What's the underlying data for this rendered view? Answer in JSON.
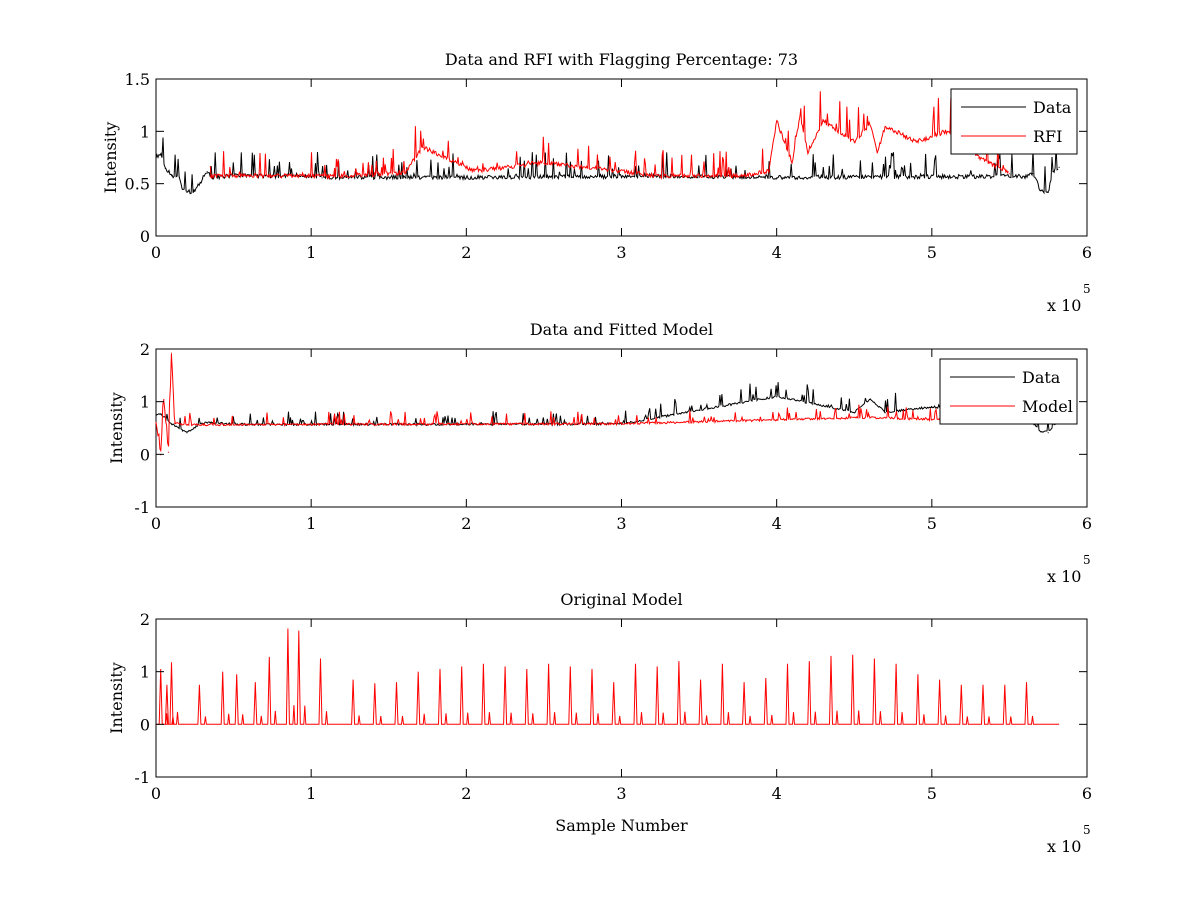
{
  "chart_data": [
    {
      "type": "line",
      "title": "Data and RFI with Flagging Percentage: 73",
      "xlabel": "",
      "ylabel": "Intensity",
      "xlim": [
        0,
        600000
      ],
      "ylim": [
        0,
        1.5
      ],
      "xticks": [
        "0",
        "1",
        "2",
        "3",
        "4",
        "5",
        "6"
      ],
      "yticks": [
        "0",
        "0.5",
        "1",
        "1.5"
      ],
      "x_exponent": {
        "base": "x 10",
        "power": "5"
      },
      "grid": false,
      "legend": {
        "placement": "top-right",
        "entries": [
          {
            "name": "Data",
            "color": "#000000"
          },
          {
            "name": "RFI",
            "color": "#ff0000"
          }
        ]
      },
      "series": [
        {
          "name": "Data",
          "color": "#000000",
          "x": [
            0,
            3000,
            6000,
            10000,
            15000,
            17000,
            20000,
            25000,
            30000,
            33000,
            36000,
            45000,
            60000,
            75000,
            90000,
            100000,
            107000,
            200000,
            300000,
            320000,
            330000,
            380000,
            390000,
            400000,
            560000,
            565000,
            570000,
            575000,
            578000,
            582000
          ],
          "y": [
            0.75,
            0.78,
            0.65,
            0.58,
            0.56,
            0.45,
            0.42,
            0.43,
            0.55,
            0.62,
            0.56,
            0.57,
            0.58,
            0.57,
            0.58,
            0.57,
            0.56,
            0.56,
            0.57,
            0.58,
            0.57,
            0.56,
            0.57,
            0.56,
            0.57,
            0.6,
            0.44,
            0.42,
            0.62,
            0.66
          ]
        },
        {
          "name": "RFI",
          "color": "#ff0000",
          "x": [
            35000,
            55000,
            110000,
            160000,
            172000,
            205000,
            250000,
            310000,
            325000,
            380000,
            395000,
            400000,
            410000,
            415000,
            420000,
            430000,
            450000,
            460000,
            465000,
            470000,
            490000,
            510000,
            530000,
            550000
          ],
          "y": [
            0.57,
            0.58,
            0.57,
            0.6,
            0.85,
            0.62,
            0.7,
            0.6,
            0.57,
            0.58,
            0.62,
            1.1,
            0.7,
            1.15,
            0.8,
            1.1,
            0.9,
            1.07,
            0.8,
            1.05,
            0.9,
            1.0,
            0.75,
            0.6
          ]
        }
      ]
    },
    {
      "type": "line",
      "title": "Data and Fitted Model",
      "xlabel": "",
      "ylabel": "Intensity",
      "xlim": [
        0,
        600000
      ],
      "ylim": [
        -1,
        2
      ],
      "xticks": [
        "0",
        "1",
        "2",
        "3",
        "4",
        "5",
        "6"
      ],
      "yticks": [
        "-1",
        "0",
        "1",
        "2"
      ],
      "x_exponent": {
        "base": "x 10",
        "power": "5"
      },
      "grid": false,
      "legend": {
        "placement": "top-right",
        "entries": [
          {
            "name": "Data",
            "color": "#000000"
          },
          {
            "name": "Model",
            "color": "#ff0000"
          }
        ]
      },
      "series": [
        {
          "name": "Data",
          "color": "#000000",
          "x": [
            0,
            3000,
            10000,
            17000,
            20000,
            30000,
            60000,
            100000,
            200000,
            300000,
            400000,
            450000,
            460000,
            470000,
            500000,
            550000,
            565000,
            570000,
            575000,
            582000
          ],
          "y": [
            0.75,
            0.78,
            0.58,
            0.45,
            0.42,
            0.6,
            0.57,
            0.57,
            0.57,
            0.58,
            1.1,
            0.8,
            1.05,
            0.8,
            0.9,
            0.8,
            0.6,
            0.44,
            0.42,
            0.66
          ]
        },
        {
          "name": "Model",
          "color": "#ff0000",
          "x": [
            0,
            3000,
            5000,
            8000,
            10000,
            12000,
            20000,
            100000,
            300000,
            460000,
            560000
          ],
          "y": [
            0.6,
            0.0,
            1.05,
            0.05,
            1.93,
            0.6,
            0.56,
            0.57,
            0.58,
            0.7,
            0.6
          ]
        }
      ]
    },
    {
      "type": "line",
      "title": "Original Model",
      "xlabel": "Sample Number",
      "ylabel": "Intensity",
      "xlim": [
        0,
        600000
      ],
      "ylim": [
        -1,
        2
      ],
      "xticks": [
        "0",
        "1",
        "2",
        "3",
        "4",
        "5",
        "6"
      ],
      "yticks": [
        "-1",
        "0",
        "1",
        "2"
      ],
      "x_exponent": {
        "base": "x 10",
        "power": "5"
      },
      "grid": false,
      "baseline": 0,
      "x_end": 582000,
      "series": [
        {
          "name": "",
          "color": "#ff0000",
          "x": [
            3000,
            7000,
            10000,
            28000,
            43000,
            52000,
            64000,
            73000,
            85000,
            92000,
            106000,
            127000,
            141000,
            155000,
            169000,
            183000,
            197000,
            211000,
            225000,
            239000,
            253000,
            267000,
            281000,
            295000,
            309000,
            323000,
            337000,
            351000,
            365000,
            379000,
            393000,
            407000,
            421000,
            435000,
            449000,
            463000,
            477000,
            491000,
            505000,
            519000,
            533000,
            547000,
            561000
          ],
          "y": [
            1.05,
            0.75,
            1.18,
            0.75,
            1.0,
            0.95,
            0.8,
            1.28,
            1.82,
            1.78,
            1.25,
            0.85,
            0.78,
            0.8,
            1.0,
            1.05,
            1.1,
            1.15,
            1.1,
            1.05,
            1.15,
            1.1,
            1.05,
            0.8,
            1.15,
            1.1,
            1.2,
            0.85,
            1.15,
            0.8,
            0.88,
            1.15,
            1.2,
            1.3,
            1.32,
            1.25,
            1.15,
            0.95,
            0.85,
            0.75,
            0.75,
            0.75,
            0.8
          ]
        }
      ]
    }
  ]
}
